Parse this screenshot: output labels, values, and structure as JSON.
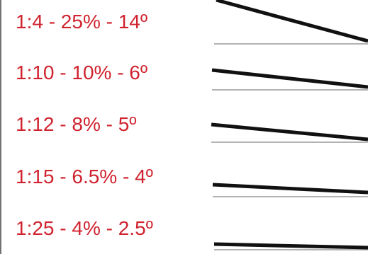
{
  "colors": {
    "label": "#d0232f",
    "slope_line": "#111111",
    "baseline": "#9a9a9a",
    "frame": "#444444"
  },
  "slopes": [
    {
      "label": "1:4 - 25% - 14º",
      "ratio": "1:4",
      "percent": 25,
      "degrees": 14
    },
    {
      "label": "1:10 - 10% - 6º",
      "ratio": "1:10",
      "percent": 10,
      "degrees": 6
    },
    {
      "label": "1:12 - 8% - 5º",
      "ratio": "1:12",
      "percent": 8,
      "degrees": 5
    },
    {
      "label": "1:15 - 6.5% - 4º",
      "ratio": "1:15",
      "percent": 6.5,
      "degrees": 4
    },
    {
      "label": "1:25 - 4% - 2.5º",
      "ratio": "1:25",
      "percent": 4,
      "degrees": 2.5
    }
  ]
}
